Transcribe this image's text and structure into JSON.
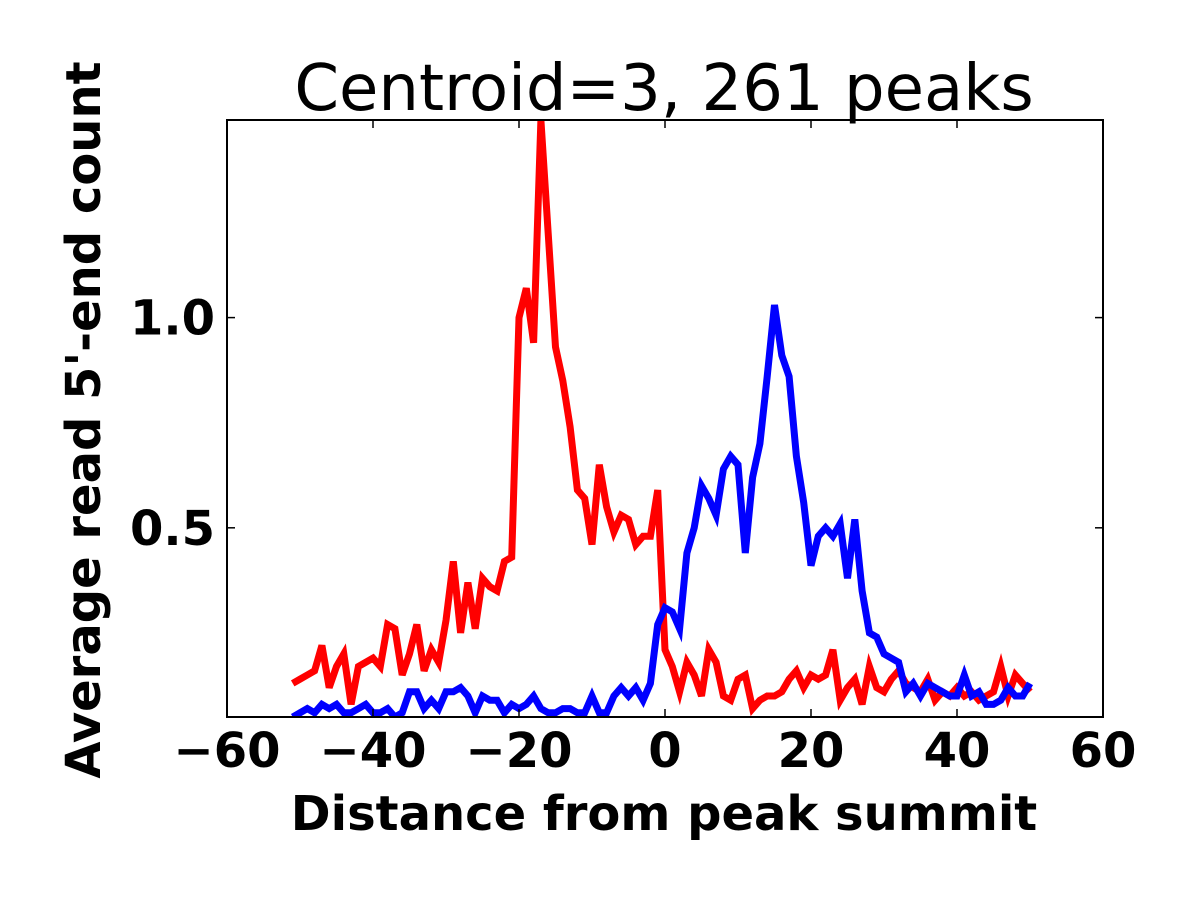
{
  "chart_data": {
    "type": "line",
    "title": "Centroid=3, 261 peaks",
    "xlabel": "Distance from peak summit",
    "ylabel": "Average read 5'-end count",
    "xlim": [
      -60,
      60
    ],
    "ylim": [
      0.05,
      1.47
    ],
    "xticks": [
      -60,
      -40,
      -20,
      0,
      20,
      40,
      60
    ],
    "xtick_labels": [
      "−60",
      "−40",
      "−20",
      "0",
      "20",
      "40",
      "60"
    ],
    "yticks": [
      0.5,
      1.0
    ],
    "ytick_labels": [
      "0.5",
      "1.0"
    ],
    "grid": false,
    "series": [
      {
        "color": "#ff0000",
        "x": [
          -51,
          -50,
          -49,
          -48,
          -47,
          -46,
          -45,
          -44,
          -43,
          -42,
          -41,
          -40,
          -39,
          -38,
          -37,
          -36,
          -35,
          -34,
          -33,
          -32,
          -31,
          -30,
          -29,
          -28,
          -27,
          -26,
          -25,
          -24,
          -23,
          -22,
          -21,
          -20,
          -19,
          -18,
          -17,
          -16,
          -15,
          -14,
          -13,
          -12,
          -11,
          -10,
          -9,
          -8,
          -7,
          -6,
          -5,
          -4,
          -3,
          -2,
          -1,
          0,
          1,
          2,
          3,
          4,
          5,
          6,
          7,
          8,
          9,
          10,
          11,
          12,
          13,
          14,
          15,
          16,
          17,
          18,
          19,
          20,
          21,
          22,
          23,
          24,
          25,
          26,
          27,
          28,
          29,
          30,
          31,
          32,
          33,
          34,
          35,
          36,
          37,
          38,
          39,
          40,
          41,
          42,
          43,
          44,
          45,
          46,
          47,
          48,
          49,
          50
        ],
        "y": [
          0.13,
          0.14,
          0.15,
          0.16,
          0.22,
          0.12,
          0.17,
          0.2,
          0.08,
          0.17,
          0.18,
          0.19,
          0.17,
          0.27,
          0.26,
          0.15,
          0.2,
          0.27,
          0.16,
          0.21,
          0.18,
          0.28,
          0.42,
          0.25,
          0.37,
          0.26,
          0.38,
          0.36,
          0.35,
          0.42,
          0.43,
          1.0,
          1.07,
          0.94,
          1.47,
          1.2,
          0.93,
          0.85,
          0.74,
          0.59,
          0.57,
          0.46,
          0.65,
          0.55,
          0.49,
          0.53,
          0.52,
          0.46,
          0.48,
          0.48,
          0.59,
          0.21,
          0.17,
          0.11,
          0.18,
          0.15,
          0.1,
          0.21,
          0.18,
          0.1,
          0.09,
          0.14,
          0.15,
          0.07,
          0.09,
          0.1,
          0.1,
          0.11,
          0.14,
          0.16,
          0.12,
          0.15,
          0.14,
          0.15,
          0.21,
          0.09,
          0.12,
          0.14,
          0.08,
          0.17,
          0.12,
          0.11,
          0.14,
          0.16,
          0.13,
          0.12,
          0.11,
          0.14,
          0.09,
          0.11,
          0.1,
          0.12,
          0.1,
          0.11,
          0.09,
          0.1,
          0.11,
          0.17,
          0.1,
          0.15,
          0.13,
          0.11
        ]
      },
      {
        "color": "#0000ff",
        "x": [
          -51,
          -50,
          -49,
          -48,
          -47,
          -46,
          -45,
          -44,
          -43,
          -42,
          -41,
          -40,
          -39,
          -38,
          -37,
          -36,
          -35,
          -34,
          -33,
          -32,
          -31,
          -30,
          -29,
          -28,
          -27,
          -26,
          -25,
          -24,
          -23,
          -22,
          -21,
          -20,
          -19,
          -18,
          -17,
          -16,
          -15,
          -14,
          -13,
          -12,
          -11,
          -10,
          -9,
          -8,
          -7,
          -6,
          -5,
          -4,
          -3,
          -2,
          -1,
          0,
          1,
          2,
          3,
          4,
          5,
          6,
          7,
          8,
          9,
          10,
          11,
          12,
          13,
          14,
          15,
          16,
          17,
          18,
          19,
          20,
          21,
          22,
          23,
          24,
          25,
          26,
          27,
          28,
          29,
          30,
          31,
          32,
          33,
          34,
          35,
          36,
          37,
          38,
          39,
          40,
          41,
          42,
          43,
          44,
          45,
          46,
          47,
          48,
          49,
          50
        ],
        "y": [
          0.05,
          0.06,
          0.07,
          0.06,
          0.08,
          0.07,
          0.08,
          0.06,
          0.06,
          0.07,
          0.08,
          0.06,
          0.06,
          0.07,
          0.05,
          0.06,
          0.11,
          0.11,
          0.07,
          0.09,
          0.07,
          0.11,
          0.11,
          0.12,
          0.1,
          0.06,
          0.1,
          0.09,
          0.09,
          0.06,
          0.08,
          0.07,
          0.08,
          0.1,
          0.07,
          0.06,
          0.06,
          0.07,
          0.07,
          0.06,
          0.06,
          0.1,
          0.06,
          0.06,
          0.1,
          0.12,
          0.1,
          0.12,
          0.09,
          0.13,
          0.27,
          0.31,
          0.3,
          0.26,
          0.44,
          0.5,
          0.6,
          0.57,
          0.53,
          0.64,
          0.67,
          0.65,
          0.44,
          0.62,
          0.7,
          0.86,
          1.03,
          0.91,
          0.86,
          0.67,
          0.56,
          0.41,
          0.48,
          0.5,
          0.48,
          0.51,
          0.38,
          0.52,
          0.35,
          0.25,
          0.24,
          0.2,
          0.19,
          0.18,
          0.11,
          0.13,
          0.1,
          0.13,
          0.12,
          0.11,
          0.1,
          0.1,
          0.15,
          0.1,
          0.11,
          0.08,
          0.08,
          0.09,
          0.12,
          0.1,
          0.1,
          0.13
        ]
      }
    ]
  }
}
